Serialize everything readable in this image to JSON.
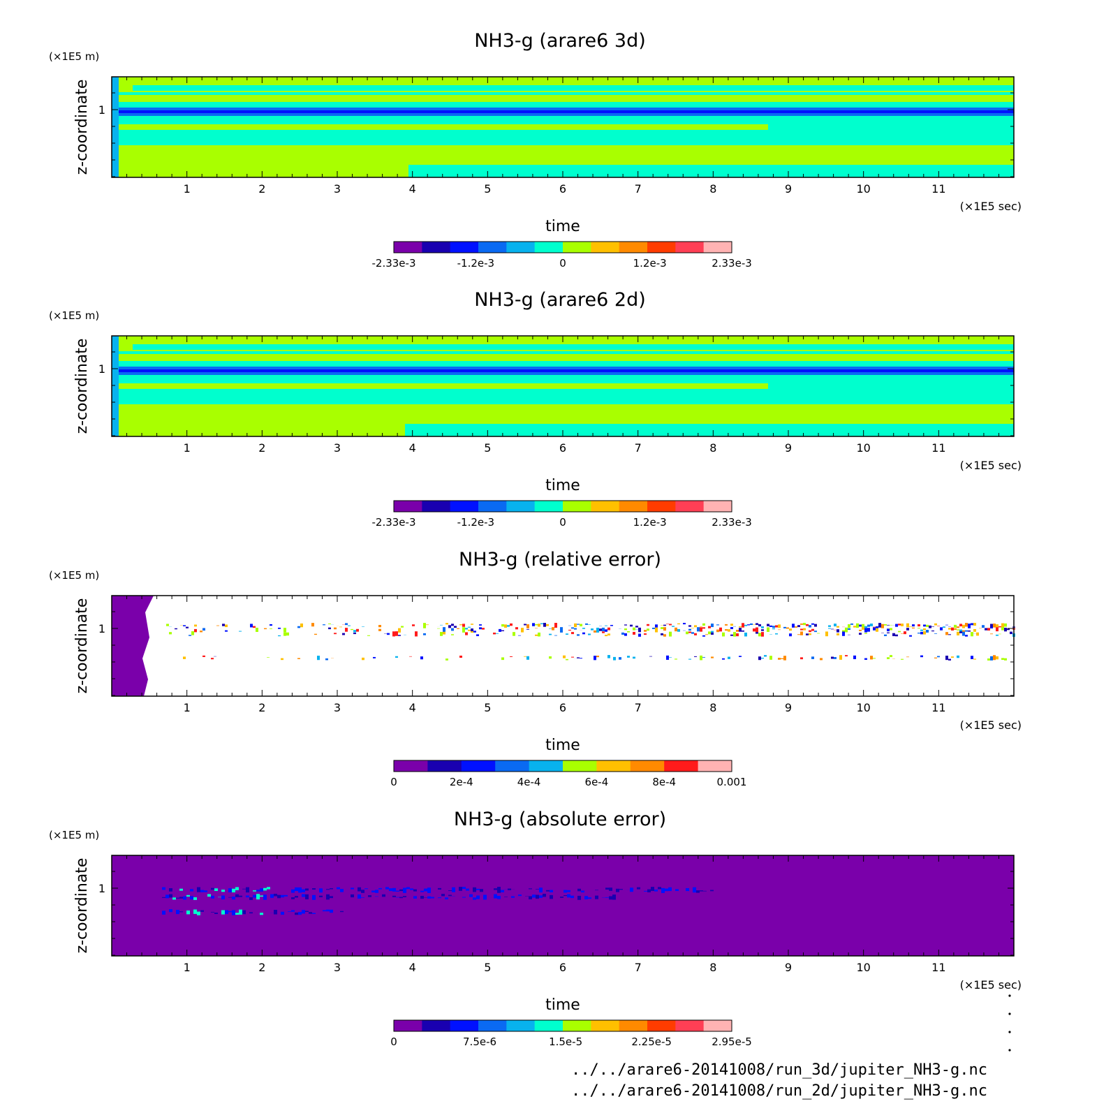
{
  "colors": {
    "scheme12": [
      "#7a00aa",
      "#1900b0",
      "#0011ff",
      "#0a6af2",
      "#08b2ee",
      "#00ffce",
      "#a9ff00",
      "#ffc000",
      "#ff8a00",
      "#ff3c00",
      "#ff3f55",
      "#ffb3b3"
    ],
    "scheme10": [
      "#7a00aa",
      "#1900b0",
      "#0011ff",
      "#0a6af2",
      "#08b2ee",
      "#a9ff00",
      "#ffc000",
      "#ff8a00",
      "#ff1b1b",
      "#ffb3b3"
    ]
  },
  "chart_data": [
    {
      "type": "heatmap",
      "title": "NH3-g (arare6 3d)",
      "xlabel": "time",
      "ylabel": "z-coordinate",
      "x_unit": "(×1E5 sec)",
      "y_unit": "(×1E5 m)",
      "xlim": [
        0,
        12
      ],
      "x_ticks": [
        "1",
        "2",
        "3",
        "4",
        "5",
        "6",
        "7",
        "8",
        "9",
        "10",
        "11"
      ],
      "y_ticks": [
        "1"
      ],
      "colorbar_labels": [
        "-2.33e-3",
        "-1.2e-3",
        "0",
        "1.2e-3",
        "2.33e-3"
      ],
      "colorbar_range": [
        -0.00233,
        0.00233
      ],
      "colorbar_steps": 12
    },
    {
      "type": "heatmap",
      "title": "NH3-g (arare6 2d)",
      "xlabel": "time",
      "ylabel": "z-coordinate",
      "x_unit": "(×1E5 sec)",
      "y_unit": "(×1E5 m)",
      "xlim": [
        0,
        12
      ],
      "x_ticks": [
        "1",
        "2",
        "3",
        "4",
        "5",
        "6",
        "7",
        "8",
        "9",
        "10",
        "11"
      ],
      "y_ticks": [
        "1"
      ],
      "colorbar_labels": [
        "-2.33e-3",
        "-1.2e-3",
        "0",
        "1.2e-3",
        "2.33e-3"
      ],
      "colorbar_range": [
        -0.00233,
        0.00233
      ],
      "colorbar_steps": 12
    },
    {
      "type": "heatmap",
      "title": "NH3-g (relative error)",
      "xlabel": "time",
      "ylabel": "z-coordinate",
      "x_unit": "(×1E5 sec)",
      "y_unit": "(×1E5 m)",
      "xlim": [
        0,
        12
      ],
      "x_ticks": [
        "1",
        "2",
        "3",
        "4",
        "5",
        "6",
        "7",
        "8",
        "9",
        "10",
        "11"
      ],
      "y_ticks": [
        "1"
      ],
      "colorbar_labels": [
        "0",
        "2e-4",
        "4e-4",
        "6e-4",
        "8e-4",
        "0.001"
      ],
      "colorbar_range": [
        0,
        0.001
      ],
      "colorbar_steps": 10
    },
    {
      "type": "heatmap",
      "title": "NH3-g (absolute error)",
      "xlabel": "time",
      "ylabel": "z-coordinate",
      "x_unit": "(×1E5 sec)",
      "y_unit": "(×1E5 m)",
      "xlim": [
        0,
        12
      ],
      "x_ticks": [
        "1",
        "2",
        "3",
        "4",
        "5",
        "6",
        "7",
        "8",
        "9",
        "10",
        "11"
      ],
      "y_ticks": [
        "1"
      ],
      "colorbar_labels": [
        "0",
        "7.5e-6",
        "1.5e-5",
        "2.25e-5",
        "2.95e-5"
      ],
      "colorbar_range": [
        0,
        2.95e-05
      ],
      "colorbar_steps": 12
    }
  ],
  "footer": {
    "line1": "../../arare6-20141008/run_3d/jupiter_NH3-g.nc",
    "line2": "../../arare6-20141008/run_2d/jupiter_NH3-g.nc"
  }
}
